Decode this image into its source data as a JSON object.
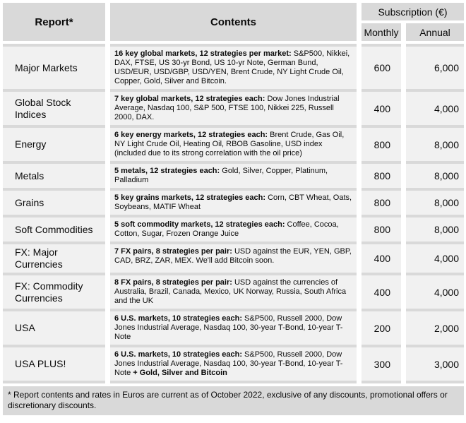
{
  "colors": {
    "header_bg": "#d9d9d9",
    "separator": "#d9d9d9",
    "cell_bg": "#f1f1f1",
    "text": "#0a0a0a",
    "page_bg": "#ffffff"
  },
  "table": {
    "header": {
      "report": "Report*",
      "contents": "Contents",
      "subscription": "Subscription (€)",
      "monthly": "Monthly",
      "annual": "Annual"
    },
    "rows": [
      {
        "report": "Major Markets",
        "lead": "16 key global markets, 12 strategies per market:",
        "desc": " S&P500, Nikkei, DAX, FTSE, US 30-yr Bond, US 10-yr Note, German Bund, USD/EUR, USD/GBP, USD/YEN, Brent Crude, NY Light Crude Oil, Copper, Gold, Silver and Bitcoin.",
        "tail": "",
        "monthly": "600",
        "annual": "6,000"
      },
      {
        "report": "Global Stock Indices",
        "lead": "7 key global markets, 12 strategies each:",
        "desc": " Dow Jones Industrial Average, Nasdaq 100, S&P 500, FTSE 100, Nikkei 225, Russell 2000, DAX.",
        "tail": "",
        "monthly": "400",
        "annual": "4,000"
      },
      {
        "report": "Energy",
        "lead": "6 key energy markets, 12 strategies each:",
        "desc": " Brent Crude, Gas Oil, NY Light Crude Oil, Heating Oil, RBOB Gasoline, USD index (included due to its strong correlation with the oil price)",
        "tail": "",
        "monthly": "800",
        "annual": "8,000"
      },
      {
        "report": "Metals",
        "lead": "5 metals, 12 strategies each:",
        "desc": " Gold, Silver, Copper, Platinum, Palladium",
        "tail": "",
        "monthly": "800",
        "annual": "8,000"
      },
      {
        "report": "Grains",
        "lead": "5 key grains markets, 12 strategies each:",
        "desc": " Corn, CBT Wheat, Oats, Soybeans, MATIF Wheat",
        "tail": "",
        "monthly": "800",
        "annual": "8,000"
      },
      {
        "report": "Soft Commodities",
        "lead": "5 soft commodity markets, 12 strategies each:",
        "desc": " Coffee, Cocoa, Cotton, Sugar, Frozen Orange Juice",
        "tail": "",
        "monthly": "800",
        "annual": "8,000"
      },
      {
        "report": "FX: Major Currencies",
        "lead": "7 FX pairs, 8 strategies per pair:",
        "desc": " USD against the EUR, YEN, GBP, CAD, BRZ, ZAR, MEX. We'll add Bitcoin soon.",
        "tail": "",
        "monthly": "400",
        "annual": "4,000"
      },
      {
        "report": "FX: Commodity Currencies",
        "lead": "8 FX pairs, 8 strategies per pair:",
        "desc": " USD against the currencies of Australia, Brazil, Canada, Mexico, UK Norway, Russia, South Africa and the UK",
        "tail": "",
        "monthly": "400",
        "annual": "4,000"
      },
      {
        "report": "USA",
        "lead": "6 U.S. markets, 10 strategies each:",
        "desc": " S&P500, Russell 2000, Dow Jones Industrial Average, Nasdaq 100, 30-year T-Bond, 10-year T-Note",
        "tail": "",
        "monthly": "200",
        "annual": "2,000"
      },
      {
        "report": "USA PLUS!",
        "lead": "6 U.S. markets, 10 strategies each:",
        "desc": " S&P500, Russell 2000, Dow Jones Industrial Average, Nasdaq 100, 30-year T-Bond, 10-year T-Note ",
        "tail": "+ Gold, Silver and Bitcoin",
        "monthly": "300",
        "annual": "3,000"
      }
    ],
    "footnote": "* Report contents and rates in Euros are current as of October 2022, exclusive of any discounts, promotional offers or discretionary discounts."
  }
}
